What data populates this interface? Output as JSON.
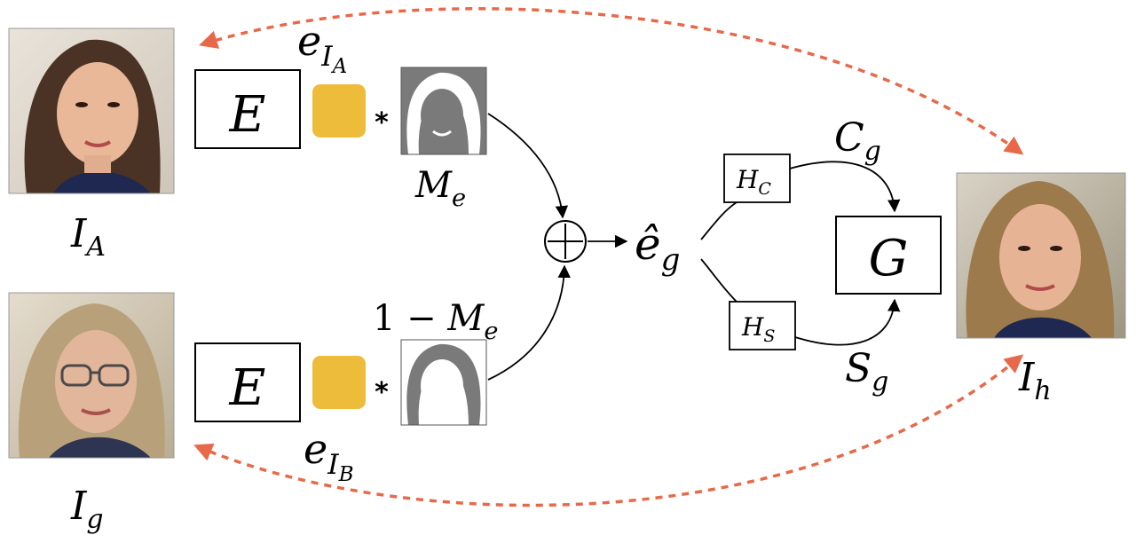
{
  "images": {
    "face_a": {
      "label_main": "I",
      "label_sub": "A"
    },
    "face_g": {
      "label_main": "I",
      "label_sub": "g"
    },
    "face_h": {
      "label_main": "I",
      "label_sub": "h"
    }
  },
  "encoders": {
    "top": {
      "label": "E",
      "embedding_main": "e",
      "embedding_sub_main": "I",
      "embedding_sub_sub": "A"
    },
    "bottom": {
      "label": "E",
      "embedding_main": "e",
      "embedding_sub_main": "I",
      "embedding_sub_sub": "B"
    }
  },
  "masks": {
    "top": {
      "label_main": "M",
      "label_sub": "e"
    },
    "bottom": {
      "label_prefix": "1 − ",
      "label_main": "M",
      "label_sub": "e"
    }
  },
  "operators": {
    "multiply": "*",
    "add": "+"
  },
  "combined": {
    "label_main": "ê",
    "label_sub": "g"
  },
  "heads": {
    "content": {
      "main": "H",
      "sub": "C"
    },
    "style": {
      "main": "H",
      "sub": "S"
    }
  },
  "codes": {
    "content": {
      "main": "C",
      "sub": "g"
    },
    "style": {
      "main": "S",
      "sub": "g"
    }
  },
  "generator": {
    "label": "G"
  },
  "colors": {
    "embedding": "#EDBC3B",
    "loss_arrow": "#E8694A",
    "mask_gray": "#7a7a7a"
  }
}
